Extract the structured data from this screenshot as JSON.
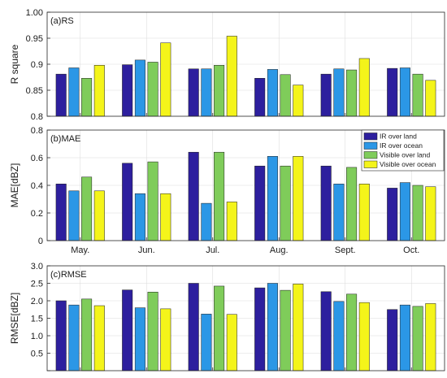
{
  "chart_data": [
    {
      "type": "bar",
      "panel_title": "(a)RS",
      "ylabel": "R square",
      "ylim": [
        0.8,
        1.0
      ],
      "yticks": [
        "0.8",
        "0.85",
        "0.9",
        "0.95",
        "1.00"
      ],
      "yticks_values": [
        0.8,
        0.85,
        0.9,
        0.95,
        1.0
      ],
      "grid": true,
      "categories": [
        "May.",
        "Jun.",
        "Jul.",
        "Aug.",
        "Sept.",
        "Oct."
      ],
      "show_category_labels": false,
      "series": [
        {
          "name": "IR over land",
          "values": [
            0.881,
            0.899,
            0.891,
            0.873,
            0.881,
            0.892
          ]
        },
        {
          "name": "IR over ocean",
          "values": [
            0.893,
            0.908,
            0.891,
            0.89,
            0.891,
            0.893
          ]
        },
        {
          "name": "Visible over land",
          "values": [
            0.873,
            0.904,
            0.898,
            0.88,
            0.889,
            0.881
          ]
        },
        {
          "name": "Visible over ocean",
          "values": [
            0.898,
            0.941,
            0.954,
            0.86,
            0.911,
            0.869
          ]
        }
      ]
    },
    {
      "type": "bar",
      "panel_title": "(b)MAE",
      "ylabel": "MAE[dBZ]",
      "ylim": [
        0,
        0.8
      ],
      "yticks": [
        "0",
        "0.2",
        "0.4",
        "0.6",
        "0.8"
      ],
      "yticks_values": [
        0,
        0.2,
        0.4,
        0.6,
        0.8
      ],
      "grid": true,
      "categories": [
        "May.",
        "Jun.",
        "Jul.",
        "Aug.",
        "Sept.",
        "Oct."
      ],
      "show_category_labels": true,
      "legend": {
        "placement": "top-right"
      },
      "series": [
        {
          "name": "IR over land",
          "values": [
            0.41,
            0.56,
            0.64,
            0.54,
            0.54,
            0.38
          ]
        },
        {
          "name": "IR over ocean",
          "values": [
            0.36,
            0.34,
            0.27,
            0.61,
            0.41,
            0.42
          ]
        },
        {
          "name": "Visible over land",
          "values": [
            0.46,
            0.57,
            0.64,
            0.54,
            0.53,
            0.4
          ]
        },
        {
          "name": "Visible over ocean",
          "values": [
            0.36,
            0.34,
            0.28,
            0.61,
            0.41,
            0.39
          ]
        }
      ]
    },
    {
      "type": "bar",
      "panel_title": "(c)RMSE",
      "ylabel": "RMSE[dBZ]",
      "ylim": [
        0.0,
        3.0
      ],
      "yticks": [
        "",
        "0.5",
        "1.0",
        "1.5",
        "2.0",
        "2.5",
        "3.0"
      ],
      "yticks_values": [
        0.0,
        0.5,
        1.0,
        1.5,
        2.0,
        2.5,
        3.0
      ],
      "grid": true,
      "categories": [
        "May.",
        "Jun.",
        "Jul.",
        "Aug.",
        "Sept.",
        "Oct."
      ],
      "show_category_labels": false,
      "series": [
        {
          "name": "IR over land",
          "values": [
            2.0,
            2.31,
            2.5,
            2.37,
            2.26,
            1.75
          ]
        },
        {
          "name": "IR over ocean",
          "values": [
            1.88,
            1.8,
            1.62,
            2.5,
            1.98,
            1.88
          ]
        },
        {
          "name": "Visible over land",
          "values": [
            2.05,
            2.25,
            2.42,
            2.3,
            2.19,
            1.84
          ]
        },
        {
          "name": "Visible over ocean",
          "values": [
            1.86,
            1.77,
            1.61,
            2.48,
            1.95,
            1.92
          ]
        }
      ]
    }
  ],
  "colors": {
    "IR over land": "#2d1f9e",
    "IR over ocean": "#2b97e6",
    "Visible over land": "#7fcc5a",
    "Visible over ocean": "#f4f41a"
  },
  "legend_entries": [
    "IR over land",
    "IR over ocean",
    "Visible over land",
    "Visible over ocean"
  ]
}
